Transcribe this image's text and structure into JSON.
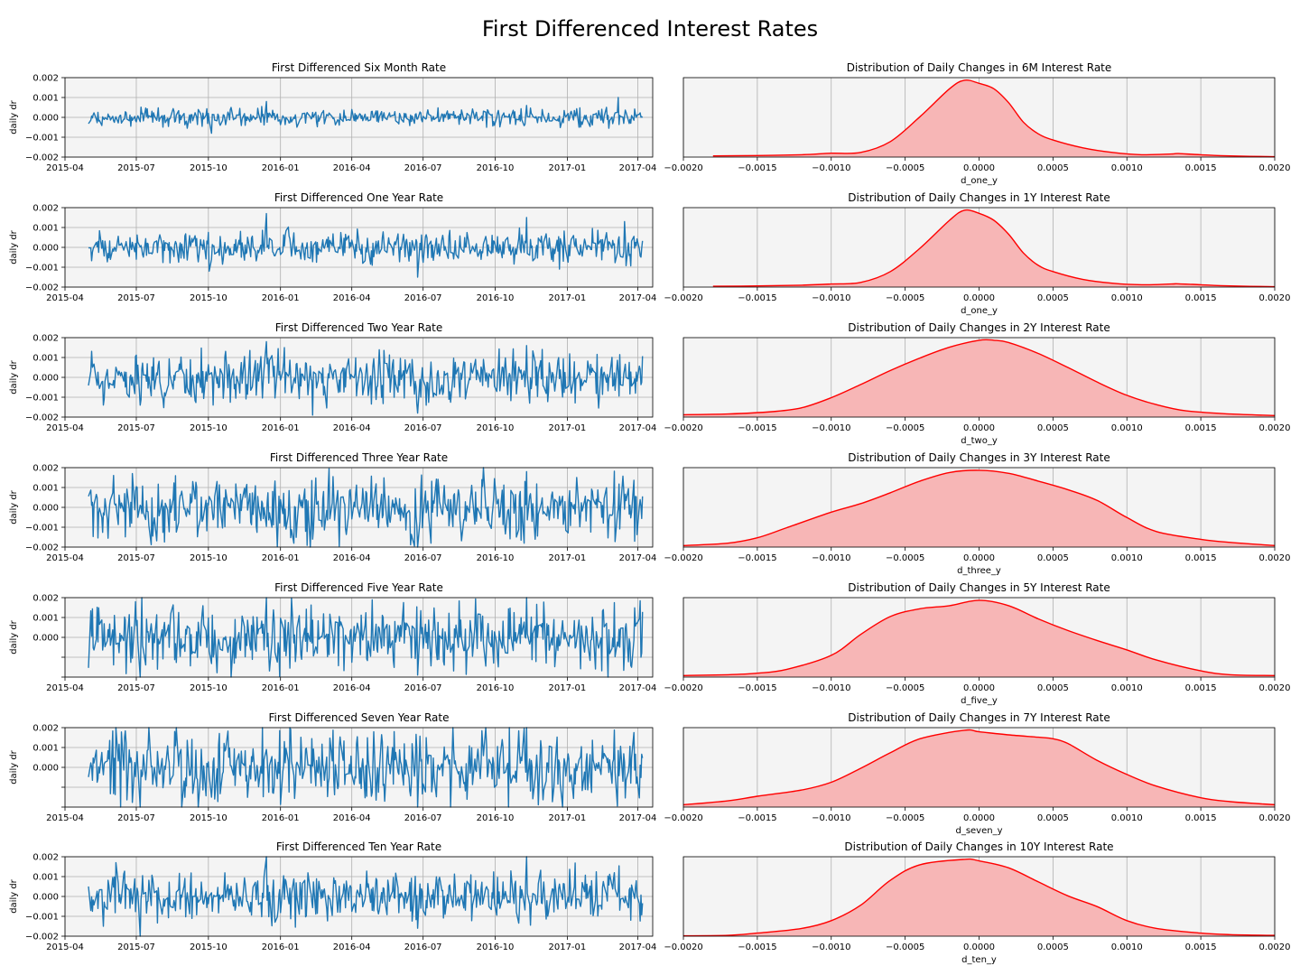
{
  "figure": {
    "title": "First Differenced Interest Rates"
  },
  "style": {
    "series_color": "#1f77b4",
    "kde_line": "#ff0000",
    "kde_fill": "#f7b6b6",
    "axes_bg": "#f4f4f4",
    "grid": "#b0b0b0"
  },
  "chart_data": [
    {
      "type": "line",
      "title": "First Differenced Six Month Rate",
      "ylabel": "daily dr",
      "xlabel": "",
      "xlim": [
        "2015-04-01",
        "2017-04-20"
      ],
      "ylim": [
        -0.002,
        0.002
      ],
      "yticks": [
        "0.002",
        "0.001",
        "0.000",
        "−0.001",
        "−0.002"
      ],
      "xticks": [
        "2015-04",
        "2015-07",
        "2015-10",
        "2016-01",
        "2016-04",
        "2016-07",
        "2016-10",
        "2017-01",
        "2017-04"
      ],
      "x_range": [
        "2015-05-01",
        "2017-04-07"
      ],
      "amplitude": 0.00022,
      "spikes": [
        [
          "2015-10-05",
          -0.0008
        ],
        [
          "2016-11-10",
          0.0006
        ],
        [
          "2017-03-07",
          0.001
        ],
        [
          "2015-12-14",
          0.0008
        ],
        [
          "2016-09-20",
          -0.0005
        ]
      ],
      "grid": true
    },
    {
      "type": "line",
      "title": "First Differenced One Year Rate",
      "ylabel": "daily dr",
      "xlabel": "",
      "xlim": [
        "2015-04-01",
        "2017-04-20"
      ],
      "ylim": [
        -0.002,
        0.002
      ],
      "yticks": [
        "0.002",
        "0.001",
        "0.000",
        "−0.001",
        "−0.002"
      ],
      "xticks": [
        "2015-04",
        "2015-07",
        "2015-10",
        "2016-01",
        "2016-04",
        "2016-07",
        "2016-10",
        "2017-01",
        "2017-04"
      ],
      "x_range": [
        "2015-05-01",
        "2017-04-07"
      ],
      "amplitude": 0.00038,
      "spikes": [
        [
          "2015-12-14",
          0.0017
        ],
        [
          "2016-06-24",
          -0.0015
        ],
        [
          "2016-11-10",
          0.0015
        ],
        [
          "2015-10-02",
          -0.0012
        ],
        [
          "2017-03-15",
          0.0013
        ]
      ],
      "grid": true
    },
    {
      "type": "line",
      "title": "First Differenced Two Year Rate",
      "ylabel": "daily dr",
      "xlabel": "",
      "xlim": [
        "2015-04-01",
        "2017-04-20"
      ],
      "ylim": [
        -0.002,
        0.002
      ],
      "yticks": [
        "0.002",
        "0.001",
        "0.000",
        "−0.001",
        "−0.002"
      ],
      "xticks": [
        "2015-04",
        "2015-07",
        "2015-10",
        "2016-01",
        "2016-04",
        "2016-07",
        "2016-10",
        "2017-01",
        "2017-04"
      ],
      "x_range": [
        "2015-05-01",
        "2017-04-07"
      ],
      "amplitude": 0.0006,
      "spikes": [
        [
          "2015-12-14",
          0.0018
        ],
        [
          "2016-02-11",
          -0.0019
        ],
        [
          "2016-06-24",
          -0.0018
        ],
        [
          "2016-11-10",
          0.0016
        ],
        [
          "2015-07-06",
          -0.0014
        ]
      ],
      "grid": true
    },
    {
      "type": "line",
      "title": "First Differenced Three Year Rate",
      "ylabel": "daily dr",
      "xlabel": "",
      "xlim": [
        "2015-04-01",
        "2017-04-20"
      ],
      "ylim": [
        -0.002,
        0.002
      ],
      "yticks": [
        "0.002",
        "0.001",
        "0.000",
        "−0.001",
        "−0.002"
      ],
      "xticks": [
        "2015-04",
        "2015-07",
        "2015-10",
        "2016-01",
        "2016-04",
        "2016-07",
        "2016-10",
        "2017-01",
        "2017-04"
      ],
      "x_range": [
        "2015-05-01",
        "2017-04-07"
      ],
      "amplitude": 0.0008,
      "spikes": [
        [
          "2016-06-24",
          -0.002
        ],
        [
          "2016-11-10",
          0.0018
        ],
        [
          "2015-06-26",
          0.0017
        ],
        [
          "2016-02-11",
          -0.0016
        ]
      ],
      "grid": true
    },
    {
      "type": "line",
      "title": "First Differenced Five Year Rate",
      "ylabel": "daily dr",
      "xlabel": "",
      "xlim": [
        "2015-04-01",
        "2017-04-20"
      ],
      "ylim": [
        -0.002,
        0.002
      ],
      "yticks": [
        "0.002",
        "0.001",
        "0.000"
      ],
      "xticks": [
        "2015-04",
        "2015-07",
        "2015-10",
        "2016-01",
        "2016-04",
        "2016-07",
        "2016-10",
        "2017-01",
        "2017-04"
      ],
      "x_range": [
        "2015-05-01",
        "2017-04-07"
      ],
      "amplitude": 0.0008,
      "spikes": [
        [
          "2015-12-14",
          0.002
        ],
        [
          "2016-11-10",
          0.002
        ],
        [
          "2016-06-24",
          -0.0019
        ],
        [
          "2015-07-06",
          -0.002
        ]
      ],
      "grid": true
    },
    {
      "type": "line",
      "title": "First Differenced Seven Year Rate",
      "ylabel": "daily dr",
      "xlabel": "",
      "xlim": [
        "2015-04-01",
        "2017-04-20"
      ],
      "ylim": [
        -0.002,
        0.002
      ],
      "yticks": [
        "0.002",
        "0.001",
        "0.000"
      ],
      "xticks": [
        "2015-04",
        "2015-07",
        "2015-10",
        "2016-01",
        "2016-04",
        "2016-07",
        "2016-10",
        "2017-01",
        "2017-04"
      ],
      "x_range": [
        "2015-05-01",
        "2017-04-07"
      ],
      "amplitude": 0.0009,
      "spikes": [
        [
          "2015-06-05",
          0.002
        ],
        [
          "2015-07-06",
          -0.002
        ],
        [
          "2016-06-24",
          -0.002
        ],
        [
          "2016-11-10",
          0.002
        ]
      ],
      "grid": true
    },
    {
      "type": "line",
      "title": "First Differenced Ten Year Rate",
      "ylabel": "daily dr",
      "xlabel": "",
      "xlim": [
        "2015-04-01",
        "2017-04-20"
      ],
      "ylim": [
        -0.002,
        0.002
      ],
      "yticks": [
        "0.002",
        "0.001",
        "0.000",
        "−0.001",
        "−0.002"
      ],
      "xticks": [
        "2015-04",
        "2015-07",
        "2015-10",
        "2016-01",
        "2016-04",
        "2016-07",
        "2016-10",
        "2017-01",
        "2017-04"
      ],
      "x_range": [
        "2015-05-01",
        "2017-04-07"
      ],
      "amplitude": 0.0006,
      "spikes": [
        [
          "2015-12-14",
          0.002
        ],
        [
          "2016-11-10",
          0.002
        ],
        [
          "2015-06-05",
          0.0017
        ],
        [
          "2015-07-06",
          -0.002
        ],
        [
          "2015-05-20",
          -0.0015
        ],
        [
          "2016-06-24",
          -0.0016
        ]
      ],
      "grid": true
    },
    {
      "type": "area",
      "title": "Distribution of Daily Changes in 6M Interest Rate",
      "xlabel": "d_one_y",
      "ylabel": "",
      "xlim": [
        -0.002,
        0.002
      ],
      "xticks": [
        "−0.0020",
        "−0.0015",
        "−0.0010",
        "−0.0005",
        "0.0000",
        "0.0005",
        "0.0010",
        "0.0015",
        "0.0020"
      ],
      "x": [
        -0.0018,
        -0.0015,
        -0.0012,
        -0.001,
        -0.0008,
        -0.0006,
        -0.0004,
        -0.0002,
        -0.0001,
        0.0,
        0.0001,
        0.0002,
        0.0003,
        0.0004,
        0.0005,
        0.0007,
        0.0009,
        0.0011,
        0.0013,
        0.00135,
        0.0015,
        0.0017,
        0.002
      ],
      "y": [
        0.015,
        0.02,
        0.03,
        0.05,
        0.06,
        0.2,
        0.52,
        0.88,
        0.99,
        0.95,
        0.88,
        0.7,
        0.45,
        0.3,
        0.22,
        0.12,
        0.06,
        0.03,
        0.04,
        0.045,
        0.03,
        0.015,
        0.005
      ],
      "grid": true
    },
    {
      "type": "area",
      "title": "Distribution of Daily Changes in 1Y Interest Rate",
      "xlabel": "d_one_y",
      "ylabel": "",
      "xlim": [
        -0.002,
        0.002
      ],
      "xticks": [
        "−0.0020",
        "−0.0015",
        "−0.0010",
        "−0.0005",
        "0.0000",
        "0.0005",
        "0.0010",
        "0.0015",
        "0.0020"
      ],
      "x": [
        -0.0018,
        -0.0015,
        -0.0012,
        -0.001,
        -0.0008,
        -0.0006,
        -0.0004,
        -0.0002,
        -0.0001,
        0.0,
        0.0001,
        0.0002,
        0.0003,
        0.0004,
        0.0005,
        0.0007,
        0.0009,
        0.0011,
        0.0013,
        0.00135,
        0.0015,
        0.0017,
        0.002
      ],
      "y": [
        0.01,
        0.015,
        0.025,
        0.04,
        0.06,
        0.2,
        0.5,
        0.86,
        0.99,
        0.95,
        0.86,
        0.68,
        0.44,
        0.28,
        0.2,
        0.1,
        0.05,
        0.03,
        0.04,
        0.042,
        0.03,
        0.015,
        0.005
      ],
      "grid": true
    },
    {
      "type": "area",
      "title": "Distribution of Daily Changes in 2Y Interest Rate",
      "xlabel": "d_two_y",
      "ylabel": "",
      "xlim": [
        -0.002,
        0.002
      ],
      "xticks": [
        "−0.0020",
        "−0.0015",
        "−0.0010",
        "−0.0005",
        "0.0000",
        "0.0005",
        "0.0010",
        "0.0015",
        "0.0020"
      ],
      "x": [
        -0.002,
        -0.0017,
        -0.0014,
        -0.0012,
        -0.001,
        -0.0008,
        -0.0006,
        -0.0004,
        -0.0002,
        0.0,
        0.0001,
        0.0002,
        0.0004,
        0.0006,
        0.0008,
        0.001,
        0.0012,
        0.0014,
        0.0017,
        0.002
      ],
      "y": [
        0.03,
        0.04,
        0.07,
        0.12,
        0.25,
        0.42,
        0.6,
        0.76,
        0.9,
        0.99,
        0.99,
        0.96,
        0.82,
        0.64,
        0.45,
        0.28,
        0.16,
        0.08,
        0.04,
        0.02
      ],
      "grid": true
    },
    {
      "type": "area",
      "title": "Distribution of Daily Changes in 3Y Interest Rate",
      "xlabel": "d_three_y",
      "ylabel": "",
      "xlim": [
        -0.002,
        0.002
      ],
      "xticks": [
        "−0.0020",
        "−0.0015",
        "−0.0010",
        "−0.0005",
        "0.0000",
        "0.0005",
        "0.0010",
        "0.0015",
        "0.0020"
      ],
      "x": [
        -0.002,
        -0.0017,
        -0.0015,
        -0.0013,
        -0.001,
        -0.0008,
        -0.0006,
        -0.0004,
        -0.0002,
        0.0,
        0.0002,
        0.0004,
        0.0006,
        0.0008,
        0.001,
        0.0012,
        0.0015,
        0.0017,
        0.002
      ],
      "y": [
        0.02,
        0.05,
        0.12,
        0.25,
        0.45,
        0.56,
        0.7,
        0.85,
        0.96,
        0.99,
        0.95,
        0.85,
        0.74,
        0.6,
        0.38,
        0.2,
        0.1,
        0.06,
        0.02
      ],
      "grid": true
    },
    {
      "type": "area",
      "title": "Distribution of Daily Changes in 5Y Interest Rate",
      "xlabel": "d_five_y",
      "ylabel": "",
      "xlim": [
        -0.002,
        0.002
      ],
      "xticks": [
        "−0.0020",
        "−0.0015",
        "−0.0010",
        "−0.0005",
        "0.0000",
        "0.0005",
        "0.0010",
        "0.0015",
        "0.0020"
      ],
      "x": [
        -0.002,
        -0.0017,
        -0.0015,
        -0.0013,
        -0.001,
        -0.0008,
        -0.0006,
        -0.0004,
        -0.0002,
        0.0,
        0.0002,
        0.0004,
        0.0006,
        0.0008,
        0.001,
        0.0012,
        0.0015,
        0.0017,
        0.002
      ],
      "y": [
        0.02,
        0.03,
        0.05,
        0.1,
        0.28,
        0.55,
        0.78,
        0.88,
        0.92,
        0.99,
        0.92,
        0.75,
        0.6,
        0.47,
        0.35,
        0.22,
        0.08,
        0.03,
        0.02
      ],
      "grid": true
    },
    {
      "type": "area",
      "title": "Distribution of Daily Changes in 7Y Interest Rate",
      "xlabel": "d_seven_y",
      "ylabel": "",
      "xlim": [
        -0.002,
        0.002
      ],
      "xticks": [
        "−0.0020",
        "−0.0015",
        "−0.0010",
        "−0.0005",
        "0.0000",
        "0.0005",
        "0.0010",
        "0.0015",
        "0.0020"
      ],
      "x": [
        -0.002,
        -0.0017,
        -0.0015,
        -0.0012,
        -0.001,
        -0.0008,
        -0.0006,
        -0.0004,
        -0.0001,
        0.0,
        0.0002,
        0.0004,
        0.0005,
        0.0006,
        0.0008,
        0.001,
        0.0012,
        0.0015,
        0.0017,
        0.002
      ],
      "y": [
        0.03,
        0.08,
        0.14,
        0.22,
        0.32,
        0.5,
        0.7,
        0.88,
        0.99,
        0.97,
        0.93,
        0.9,
        0.88,
        0.82,
        0.6,
        0.42,
        0.27,
        0.12,
        0.07,
        0.03
      ],
      "grid": true
    },
    {
      "type": "area",
      "title": "Distribution of Daily Changes in 10Y Interest Rate",
      "xlabel": "d_ten_y",
      "ylabel": "",
      "xlim": [
        -0.002,
        0.002
      ],
      "xticks": [
        "−0.0020",
        "−0.0015",
        "−0.0010",
        "−0.0005",
        "0.0000",
        "0.0005",
        "0.0010",
        "0.0015",
        "0.0020"
      ],
      "x": [
        -0.002,
        -0.0017,
        -0.0015,
        -0.0012,
        -0.001,
        -0.0008,
        -0.0006,
        -0.0004,
        -0.0001,
        0.0,
        0.0002,
        0.0004,
        0.0006,
        0.0008,
        0.001,
        0.0012,
        0.0015,
        0.0017,
        0.002
      ],
      "y": [
        0.005,
        0.01,
        0.04,
        0.1,
        0.2,
        0.4,
        0.72,
        0.92,
        0.99,
        0.97,
        0.88,
        0.7,
        0.52,
        0.38,
        0.2,
        0.1,
        0.04,
        0.02,
        0.01
      ],
      "grid": true
    }
  ]
}
